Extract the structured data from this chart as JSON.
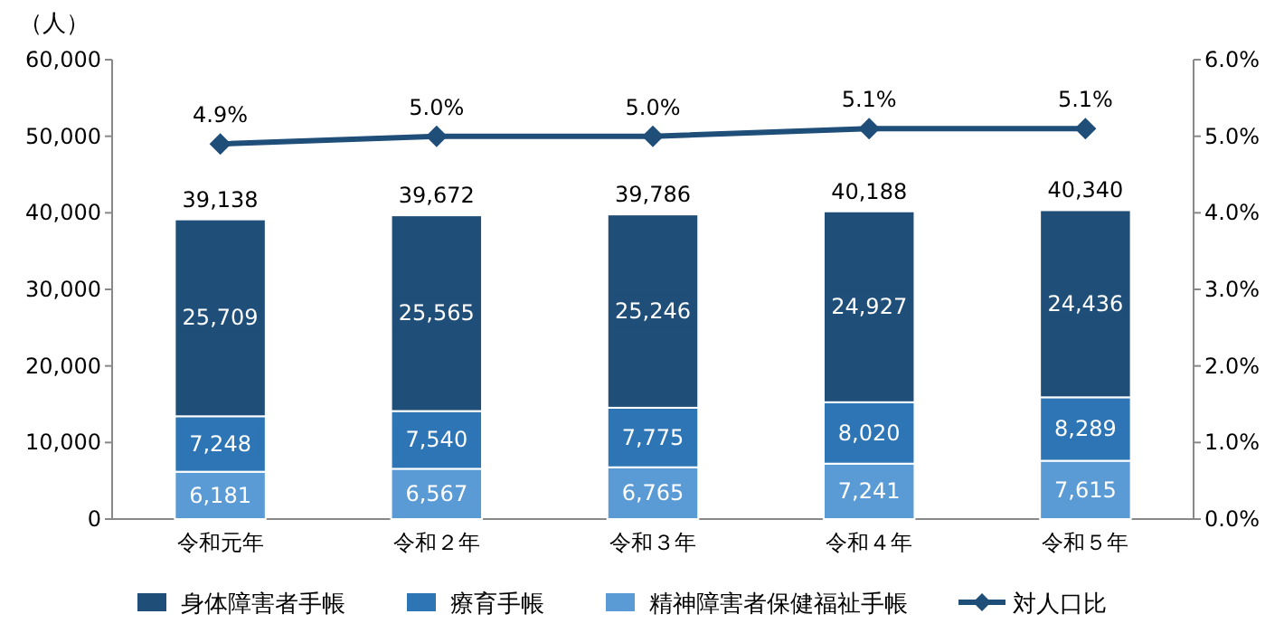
{
  "chart_data": {
    "type": "bar",
    "stacked": true,
    "ylabel": "（人）",
    "categories": [
      "令和元年",
      "令和２年",
      "令和３年",
      "令和４年",
      "令和５年"
    ],
    "series": [
      {
        "name": "精神障害者保健福祉手帳",
        "color": "#5b9bd5",
        "values": [
          6181,
          6567,
          6765,
          7241,
          7615
        ],
        "value_labels": [
          "6,181",
          "6,567",
          "6,765",
          "7,241",
          "7,615"
        ]
      },
      {
        "name": "療育手帳",
        "color": "#2e75b6",
        "values": [
          7248,
          7540,
          7775,
          8020,
          8289
        ],
        "value_labels": [
          "7,248",
          "7,540",
          "7,775",
          "8,020",
          "8,289"
        ]
      },
      {
        "name": "身体障害者手帳",
        "color": "#1f4e79",
        "values": [
          25709,
          25565,
          25246,
          24927,
          24436
        ],
        "value_labels": [
          "25,709",
          "25,565",
          "25,246",
          "24,927",
          "24,436"
        ]
      },
      {
        "name": "対人口比",
        "type": "line",
        "axis": "y2",
        "color": "#1f4e79",
        "marker": "diamond",
        "values": [
          4.9,
          5.0,
          5.0,
          5.1,
          5.1
        ],
        "value_labels": [
          "4.9%",
          "5.0%",
          "5.0%",
          "5.1%",
          "5.1%"
        ]
      }
    ],
    "totals": [
      "39,138",
      "39,672",
      "39,786",
      "40,188",
      "40,340"
    ],
    "ylim": [
      0,
      60000
    ],
    "yticks": [
      0,
      {
        "value": 10000,
        "label": "10,000"
      },
      {
        "value": 20000,
        "label": "20,000"
      },
      {
        "value": 30000,
        "label": "30,000"
      },
      {
        "value": 40000,
        "label": "40,000"
      },
      {
        "value": 50000,
        "label": "50,000"
      },
      {
        "value": 60000,
        "label": "60,000"
      }
    ],
    "y2lim": [
      0,
      6
    ],
    "y2ticks": [
      {
        "value": 0,
        "label": "0.0%"
      },
      {
        "value": 1,
        "label": "1.0%"
      },
      {
        "value": 2,
        "label": "2.0%"
      },
      {
        "value": 3,
        "label": "3.0%"
      },
      {
        "value": 4,
        "label": "4.0%"
      },
      {
        "value": 5,
        "label": "5.0%"
      },
      {
        "value": 6,
        "label": "6.0%"
      }
    ],
    "grid": false,
    "legend": "bottom"
  }
}
